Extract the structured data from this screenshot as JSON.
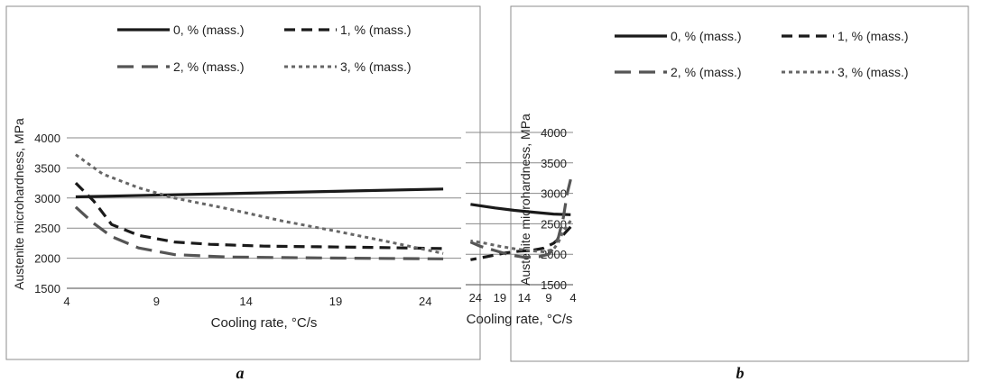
{
  "chart_data": [
    {
      "type": "line",
      "panel_label": "a",
      "xlabel": "Cooling rate, °C/s",
      "ylabel": "Austenite microhardness, MPa",
      "xlim": [
        4,
        26
      ],
      "ylim": [
        1500,
        4000
      ],
      "xticks": [
        4,
        9,
        14,
        19,
        24
      ],
      "yticks": [
        1500,
        2000,
        2500,
        3000,
        3500,
        4000
      ],
      "grid": "horizontal",
      "legend": "top",
      "series": [
        {
          "name": "0, % (mass.)",
          "style": "solid",
          "color": "#1a1a1a",
          "x": [
            4.5,
            25
          ],
          "y": [
            3020,
            3150
          ]
        },
        {
          "name": "1, % (mass.)",
          "style": "dash",
          "color": "#1a1a1a",
          "x": [
            4.5,
            5.5,
            6.5,
            8,
            10,
            12,
            15,
            18,
            21,
            25
          ],
          "y": [
            3250,
            2950,
            2560,
            2380,
            2270,
            2230,
            2200,
            2190,
            2180,
            2160
          ]
        },
        {
          "name": "2, % (mass.)",
          "style": "longdash",
          "color": "#555555",
          "x": [
            4.5,
            5.5,
            6.5,
            8,
            10,
            13,
            16,
            20,
            25
          ],
          "y": [
            2850,
            2580,
            2360,
            2170,
            2060,
            2020,
            2010,
            2000,
            1990
          ]
        },
        {
          "name": "3, % (mass.)",
          "style": "dot",
          "color": "#666666",
          "x": [
            4.5,
            6,
            8,
            10,
            13,
            16,
            19,
            22,
            25
          ],
          "y": [
            3720,
            3400,
            3170,
            3000,
            2820,
            2620,
            2450,
            2270,
            2080
          ]
        }
      ]
    },
    {
      "type": "line",
      "panel_label": "b",
      "xlabel": "Cooling rate, °C/s",
      "ylabel": "Austenite microhardness, MPa",
      "xlim": [
        4,
        26
      ],
      "ylim": [
        1500,
        4000
      ],
      "xticks": [
        4,
        9,
        14,
        19,
        24
      ],
      "yticks": [
        1500,
        2000,
        2500,
        3000,
        3500,
        4000
      ],
      "grid": "horizontal",
      "legend": "top",
      "series": [
        {
          "name": "0, % (mass.)",
          "style": "solid",
          "color": "#1a1a1a",
          "x": [
            4.5,
            8,
            12,
            16,
            20,
            25
          ],
          "y": [
            2650,
            2660,
            2690,
            2720,
            2760,
            2820
          ]
        },
        {
          "name": "1, % (mass.)",
          "style": "dash",
          "color": "#1a1a1a",
          "x": [
            4.5,
            6,
            7,
            8,
            10,
            12,
            15,
            18,
            21,
            25
          ],
          "y": [
            2450,
            2320,
            2250,
            2180,
            2100,
            2070,
            2050,
            2020,
            1970,
            1910
          ]
        },
        {
          "name": "2, % (mass.)",
          "style": "longdash",
          "color": "#555555",
          "x": [
            4.5,
            5.2,
            6,
            7,
            8,
            9,
            11,
            14,
            17,
            20,
            23,
            25
          ],
          "y": [
            3230,
            3000,
            2600,
            2280,
            2100,
            2000,
            1960,
            1950,
            1990,
            2060,
            2130,
            2200
          ]
        },
        {
          "name": "3, % (mass.)",
          "style": "dot",
          "color": "#666666",
          "x": [
            4.5,
            6,
            7,
            8,
            10,
            13,
            16,
            19,
            22,
            25
          ],
          "y": [
            2550,
            2380,
            2200,
            2080,
            2040,
            2060,
            2090,
            2130,
            2180,
            2220
          ]
        }
      ]
    }
  ]
}
